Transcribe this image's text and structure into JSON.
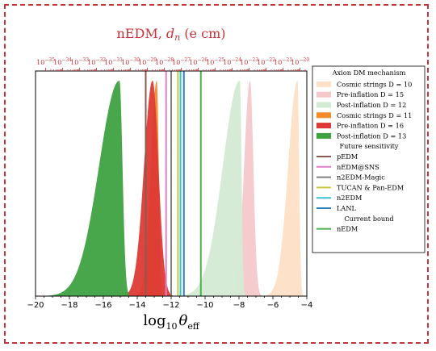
{
  "chart_data": {
    "type": "area",
    "title": "nEDM, d_n (e cm)",
    "title_parts": {
      "main": "nEDM, ",
      "sym": "d",
      "sub": "n",
      "unit": " (e cm)"
    },
    "xlabel": "log10 θeff",
    "xlabel_parts": {
      "log": "log",
      "log_sub": "10",
      "theta": "θ",
      "theta_sub": "eff"
    },
    "xlim": [
      -20,
      -4
    ],
    "x_ticks": [
      -20,
      -18,
      -16,
      -14,
      -12,
      -10,
      -8,
      -6,
      -4
    ],
    "x_tick_labels": [
      "−20",
      "−18",
      "−16",
      "−14",
      "−12",
      "−10",
      "−8",
      "−6",
      "−4"
    ],
    "top_axis": {
      "exponents": [
        -35,
        -34,
        -33,
        -32,
        -31,
        -30,
        -29,
        -28,
        -27,
        -26,
        -25,
        -24,
        -23,
        -22,
        -21,
        -20
      ],
      "base": "10",
      "minus": "−",
      "log_dn_at_log_theta_zero": -15.6
    },
    "grid": false,
    "legend_placement": "right-outside",
    "legend": {
      "title": "Axion DM mechanism",
      "entries": [
        {
          "label": "Cosmic strings D = 10",
          "color": "#fde0c6",
          "kind": "patch"
        },
        {
          "label": "Pre-inflation D = 15",
          "color": "#f6c8cb",
          "kind": "patch"
        },
        {
          "label": "Post-inflation D = 12",
          "color": "#d3ead3",
          "kind": "patch"
        },
        {
          "label": "Cosmic strings D = 11",
          "color": "#f58a2a",
          "kind": "patch"
        },
        {
          "label": "Pre-inflation D = 16",
          "color": "#dd3a35",
          "kind": "patch"
        },
        {
          "label": "Post-inflation D = 13",
          "color": "#3ea240",
          "kind": "patch"
        },
        {
          "label": "Future sensitivity",
          "kind": "header"
        },
        {
          "label": "pEDM",
          "color": "#8b5a4f",
          "kind": "line"
        },
        {
          "label": "nEDM@SNS",
          "color": "#e27fc8",
          "kind": "line"
        },
        {
          "label": "n2EDM-Magic",
          "color": "#808080",
          "kind": "line"
        },
        {
          "label": "TUCAN & Pan-EDM",
          "color": "#c8c83a",
          "kind": "line"
        },
        {
          "label": "n2EDM",
          "color": "#35c4cc",
          "kind": "line"
        },
        {
          "label": "LANL",
          "color": "#2f7fb9",
          "kind": "line"
        },
        {
          "label": "Current bound",
          "kind": "header"
        },
        {
          "label": "nEDM",
          "color": "#4caf4a",
          "kind": "line"
        }
      ]
    },
    "series": [
      {
        "name": "Cosmic strings D = 10",
        "color": "#fde0c6",
        "peak_x": -4.55,
        "width_left": 0.55,
        "width_right": 0.1,
        "start": -6.8,
        "end": -4.0
      },
      {
        "name": "Pre-inflation D = 15",
        "color": "#f6c8cb",
        "peak_x": -7.35,
        "width_left": 0.35,
        "width_right": 0.2,
        "start": -9.0,
        "end": -6.6
      },
      {
        "name": "Post-inflation D = 12",
        "color": "#d3ead3",
        "peak_x": -7.95,
        "width_left": 1.0,
        "width_right": 0.1,
        "start": -12.5,
        "end": -7.6
      },
      {
        "name": "Cosmic strings D = 11",
        "color": "#f58a2a",
        "peak_x": -12.85,
        "width_left": 0.35,
        "width_right": 0.12,
        "start": -14.0,
        "end": -12.4
      },
      {
        "name": "Pre-inflation D = 16",
        "color": "#dd3a35",
        "peak_x": -13.1,
        "width_left": 0.5,
        "width_right": 0.35,
        "start": -15.5,
        "end": -11.8
      },
      {
        "name": "Post-inflation D = 13",
        "color": "#3ea240",
        "peak_x": -15.05,
        "width_left": 1.2,
        "width_right": 0.18,
        "start": -20.0,
        "end": -14.2
      }
    ],
    "sensitivity_lines": [
      {
        "name": "pEDM",
        "x": -13.5,
        "color": "#8b5a4f"
      },
      {
        "name": "nEDM@SNS",
        "x": -12.3,
        "color": "#e27fc8"
      },
      {
        "name": "n2EDM-Magic",
        "x": -12.0,
        "color": "#808080"
      },
      {
        "name": "TUCAN & Pan-EDM",
        "x": -11.6,
        "color": "#c8c83a"
      },
      {
        "name": "n2EDM",
        "x": -11.45,
        "color": "#35c4cc"
      },
      {
        "name": "LANL",
        "x": -11.25,
        "color": "#2f7fb9"
      },
      {
        "name": "nEDM",
        "x": -10.25,
        "color": "#4caf4a"
      }
    ],
    "colors": {
      "frame": "#c8323a",
      "top_axis": "#c8323a"
    }
  }
}
